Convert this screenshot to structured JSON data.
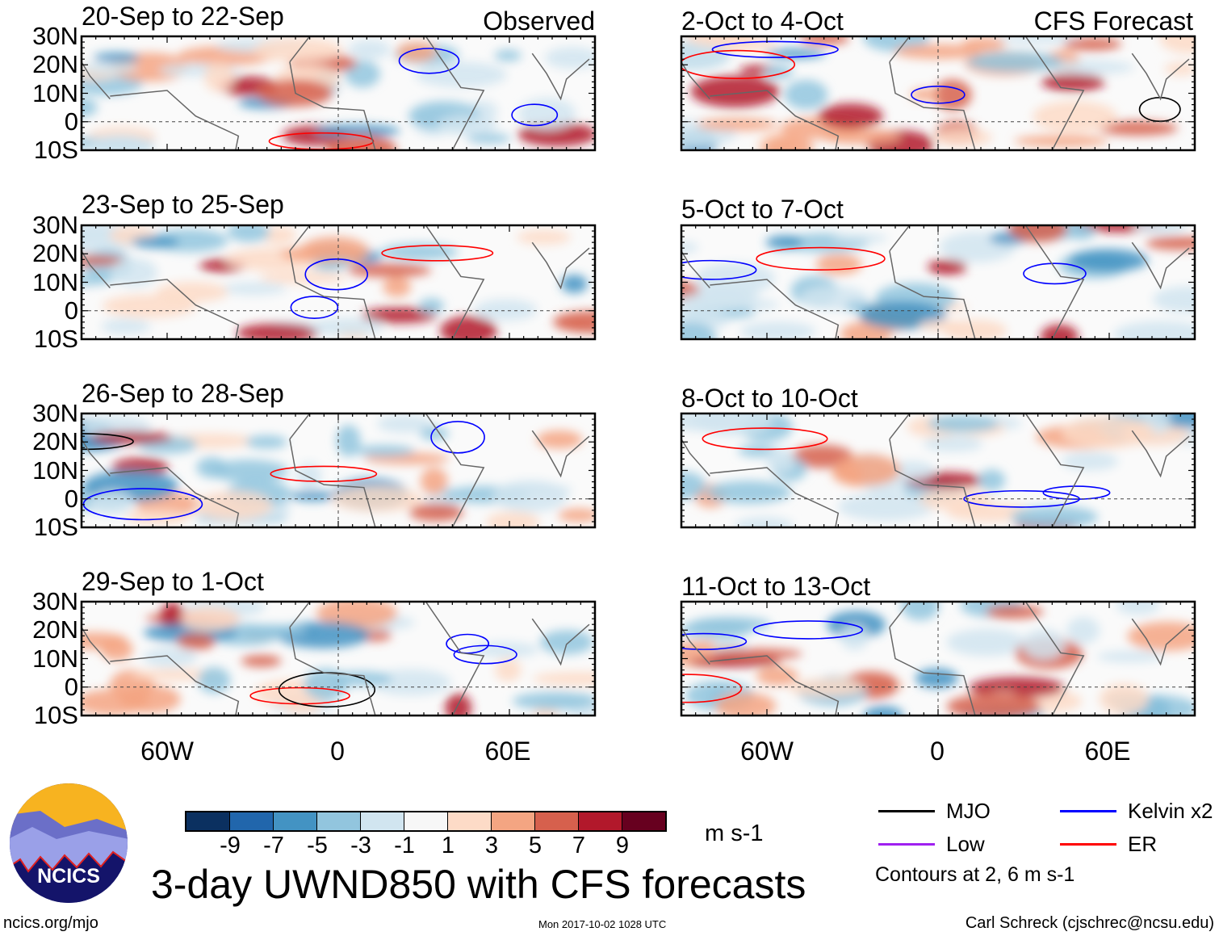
{
  "header": {
    "left_label": "Observed",
    "right_label": "CFS Forecast"
  },
  "panels": {
    "observed": [
      {
        "title": "20-Sep to 22-Sep"
      },
      {
        "title": "23-Sep to 25-Sep"
      },
      {
        "title": "26-Sep to 28-Sep"
      },
      {
        "title": "29-Sep to 1-Oct"
      }
    ],
    "forecast": [
      {
        "title": "2-Oct to 4-Oct"
      },
      {
        "title": "5-Oct to 7-Oct"
      },
      {
        "title": "8-Oct to 10-Oct"
      },
      {
        "title": "11-Oct to 13-Oct"
      }
    ]
  },
  "axes": {
    "lat_labels": [
      "30N",
      "20N",
      "10N",
      "0",
      "10S"
    ],
    "lon_labels": [
      "60W",
      "0",
      "60E"
    ],
    "lon_range": [
      -90,
      90
    ],
    "lat_range": [
      -10,
      30
    ]
  },
  "colorbar": {
    "colors": [
      "#0b3060",
      "#2166ac",
      "#4393c3",
      "#92c5de",
      "#d1e5f0",
      "#f7f7f7",
      "#fddbc7",
      "#f4a582",
      "#d6604d",
      "#b2182b",
      "#67001f"
    ],
    "labels": [
      "-9",
      "-7",
      "-5",
      "-3",
      "-1",
      "1",
      "3",
      "5",
      "7",
      "9"
    ],
    "units": "m s-1"
  },
  "title": "3-day UWND850 with CFS forecasts",
  "legend": {
    "items": [
      {
        "label": "MJO",
        "color": "#000000"
      },
      {
        "label": "Kelvin x2",
        "color": "#0000ff"
      },
      {
        "label": "Low",
        "color": "#a020f0"
      },
      {
        "label": "ER",
        "color": "#ff0000"
      }
    ],
    "note": "Contours at 2, 6 m s-1"
  },
  "logo": {
    "text": "NCICS"
  },
  "footer": {
    "left": "ncics.org/mjo",
    "center": "Mon 2017-10-02 1028 UTC",
    "right": "Carl Schreck (cjschrec@ncsu.edu)"
  }
}
